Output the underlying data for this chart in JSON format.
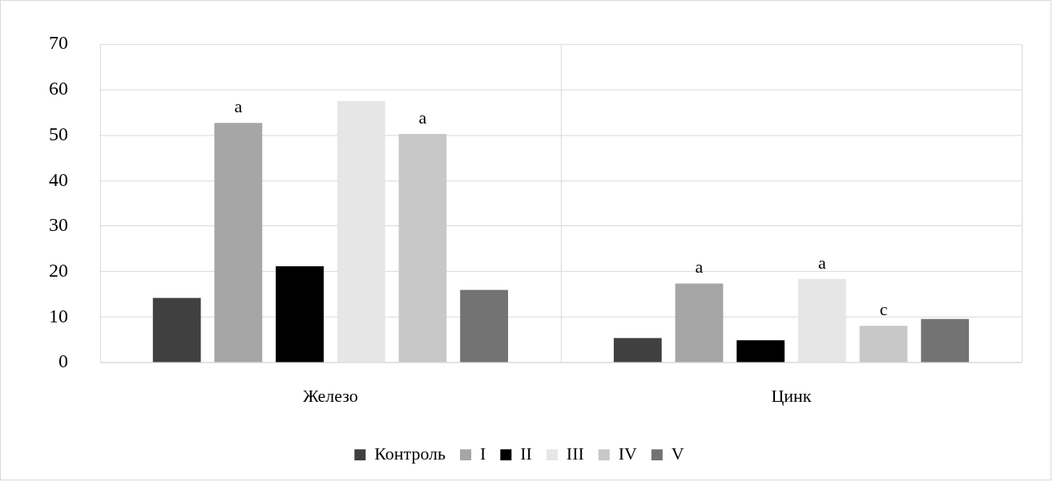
{
  "chart_data": {
    "type": "bar",
    "categories": [
      "Железо",
      "Цинк"
    ],
    "series": [
      {
        "name": "Контроль",
        "color": "#404040",
        "values": [
          14.2,
          5.4
        ]
      },
      {
        "name": "I",
        "color": "#a6a6a6",
        "values": [
          52.7,
          17.4
        ],
        "value_labels": [
          "a",
          "a"
        ]
      },
      {
        "name": "II",
        "color": "#000000",
        "values": [
          21.2,
          4.9
        ]
      },
      {
        "name": "III",
        "color": "#e6e6e6",
        "values": [
          57.5,
          18.4
        ],
        "value_labels": [
          null,
          "a"
        ]
      },
      {
        "name": "IV",
        "color": "#c8c8c8",
        "values": [
          50.3,
          8.1
        ],
        "value_labels": [
          "a",
          "c"
        ]
      },
      {
        "name": "V",
        "color": "#737373",
        "values": [
          16.0,
          9.6
        ]
      }
    ],
    "ylim": [
      0,
      70
    ],
    "yticks": [
      0,
      10,
      20,
      30,
      40,
      50,
      60,
      70
    ],
    "grid": true,
    "legend": "bottom"
  }
}
